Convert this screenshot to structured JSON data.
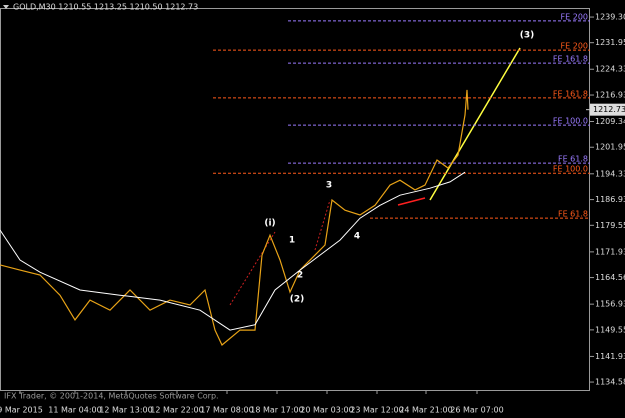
{
  "chart_data": {
    "type": "line",
    "title": "GOLD,M30  1210.55 1213.25 1210.50 1212.73",
    "footer": "IFX Trader, © 2001-2014, MetaQuotes Software Corp.",
    "ylim": [
      1132.3,
      1241.9
    ],
    "yticks": [
      {
        "value": 1239.3,
        "label": "1239.30"
      },
      1231.95,
      1224.33,
      1216.93,
      1209.34,
      1201.95,
      1194.33,
      1186.93,
      1179.55,
      1171.93,
      1164.56,
      1156.93,
      1149.55,
      1141.93,
      1134.58
    ],
    "xlim": [
      0,
      590
    ],
    "xticks": [
      {
        "value": 20,
        "label": "9 Mar 2015"
      },
      {
        "value": 75,
        "label": "11 Mar 04:00"
      },
      {
        "value": 126,
        "label": "12 Mar 13:00"
      },
      {
        "value": 177,
        "label": "12 Mar 22:00"
      },
      {
        "value": 227,
        "label": "17 Mar 08:00"
      },
      {
        "value": 277,
        "label": "18 Mar 17:00"
      },
      {
        "value": 327,
        "label": "20 Mar 03:00"
      },
      {
        "value": 377,
        "label": "23 Mar 12:00"
      },
      {
        "value": 426,
        "label": "24 Mar 21:00"
      },
      {
        "value": 477,
        "label": "26 Mar 07:00"
      }
    ],
    "last_price": 1212.73,
    "series": [
      {
        "color": "#e8a317",
        "x": [
          0,
          20,
          40,
          60,
          75,
          90,
          110,
          130,
          150,
          170,
          190,
          205,
          215,
          222,
          240,
          255,
          262,
          270,
          280,
          290,
          300,
          315,
          325,
          332,
          345,
          360,
          375,
          390,
          400,
          415,
          425,
          437,
          448,
          458,
          465,
          467,
          468
        ],
        "values": [
          1168.2,
          1166.7,
          1165.3,
          1159.5,
          1152.4,
          1158.1,
          1155.2,
          1161.0,
          1155.2,
          1158.1,
          1156.7,
          1161.0,
          1149.5,
          1145.2,
          1149.5,
          1149.5,
          1171.0,
          1176.7,
          1169.6,
          1160.4,
          1166.7,
          1171.0,
          1173.9,
          1186.8,
          1183.9,
          1182.5,
          1185.3,
          1191.1,
          1192.5,
          1189.7,
          1191.1,
          1198.3,
          1196.0,
          1199.7,
          1211.2,
          1218.4,
          1212.73
        ]
      },
      {
        "color": "#ffffff",
        "x": [
          0,
          20,
          40,
          80,
          120,
          160,
          200,
          230,
          255,
          275,
          300,
          320,
          340,
          360,
          380,
          400,
          430,
          450,
          465
        ],
        "values": [
          1178.2,
          1169.6,
          1166.1,
          1161.0,
          1159.5,
          1158.1,
          1155.2,
          1149.5,
          1151.0,
          1161.0,
          1166.7,
          1171.0,
          1175.3,
          1181.6,
          1185.3,
          1188.2,
          1190.2,
          1192.0,
          1194.8
        ]
      }
    ],
    "levels": [
      {
        "label": "FE 200",
        "price": 1238.2,
        "color": "#9b7bff"
      },
      {
        "label": "FE 200",
        "price": 1229.8,
        "color": "#ff5a1a"
      },
      {
        "label": "FE 161.8",
        "price": 1226.1,
        "color": "#9b7bff"
      },
      {
        "label": "FE 161.8",
        "price": 1216.1,
        "color": "#ff5a1a"
      },
      {
        "label": "FE 100.0",
        "price": 1208.3,
        "color": "#9b7bff"
      },
      {
        "label": "FE 61.8",
        "price": 1197.4,
        "color": "#9b7bff"
      },
      {
        "label": "FE 100.0",
        "price": 1194.5,
        "color": "#ff5a1a"
      },
      {
        "label": "FE 61.8",
        "price": 1181.6,
        "color": "#ff5a1a"
      }
    ],
    "annotations": [
      "(i)",
      "1",
      "2",
      "(2)",
      "3",
      "4",
      "(3)"
    ]
  }
}
